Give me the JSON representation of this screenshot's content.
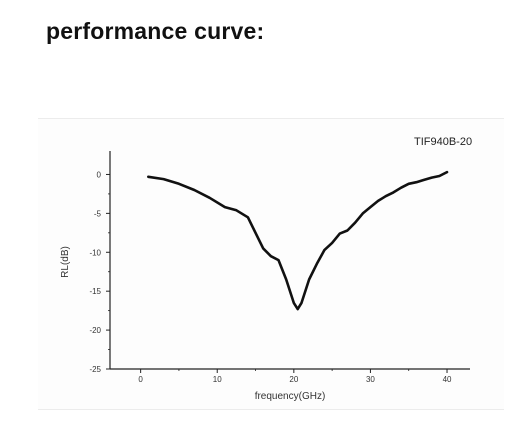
{
  "heading": "performance curve:",
  "chart_data": {
    "type": "line",
    "annotation": "TIF940B-20",
    "xlabel": "frequency(GHz)",
    "ylabel": "RL(dB)",
    "xlim": [
      -4,
      43
    ],
    "ylim": [
      -25,
      2.5
    ],
    "xticks": [
      0,
      10,
      20,
      30,
      40
    ],
    "yticks": [
      0,
      -5,
      -10,
      -15,
      -20,
      -25
    ],
    "grid": false,
    "series": [
      {
        "color": "#111111",
        "x": [
          1,
          3,
          5,
          7,
          9,
          11,
          12.5,
          14,
          15,
          16,
          17,
          18,
          19,
          20,
          20.5,
          21,
          22,
          23,
          24,
          25,
          26,
          27,
          28,
          29,
          30,
          31,
          32,
          33,
          34,
          35,
          36,
          37,
          38,
          39,
          40
        ],
        "y": [
          -0.3,
          -0.6,
          -1.2,
          -2.0,
          -3.0,
          -4.2,
          -4.6,
          -5.5,
          -7.5,
          -9.5,
          -10.5,
          -11.0,
          -13.5,
          -16.5,
          -17.3,
          -16.5,
          -13.5,
          -11.5,
          -9.7,
          -8.8,
          -7.6,
          -7.2,
          -6.2,
          -5.0,
          -4.2,
          -3.4,
          -2.8,
          -2.3,
          -1.7,
          -1.2,
          -1.0,
          -0.7,
          -0.4,
          -0.2,
          0.3
        ]
      }
    ]
  }
}
